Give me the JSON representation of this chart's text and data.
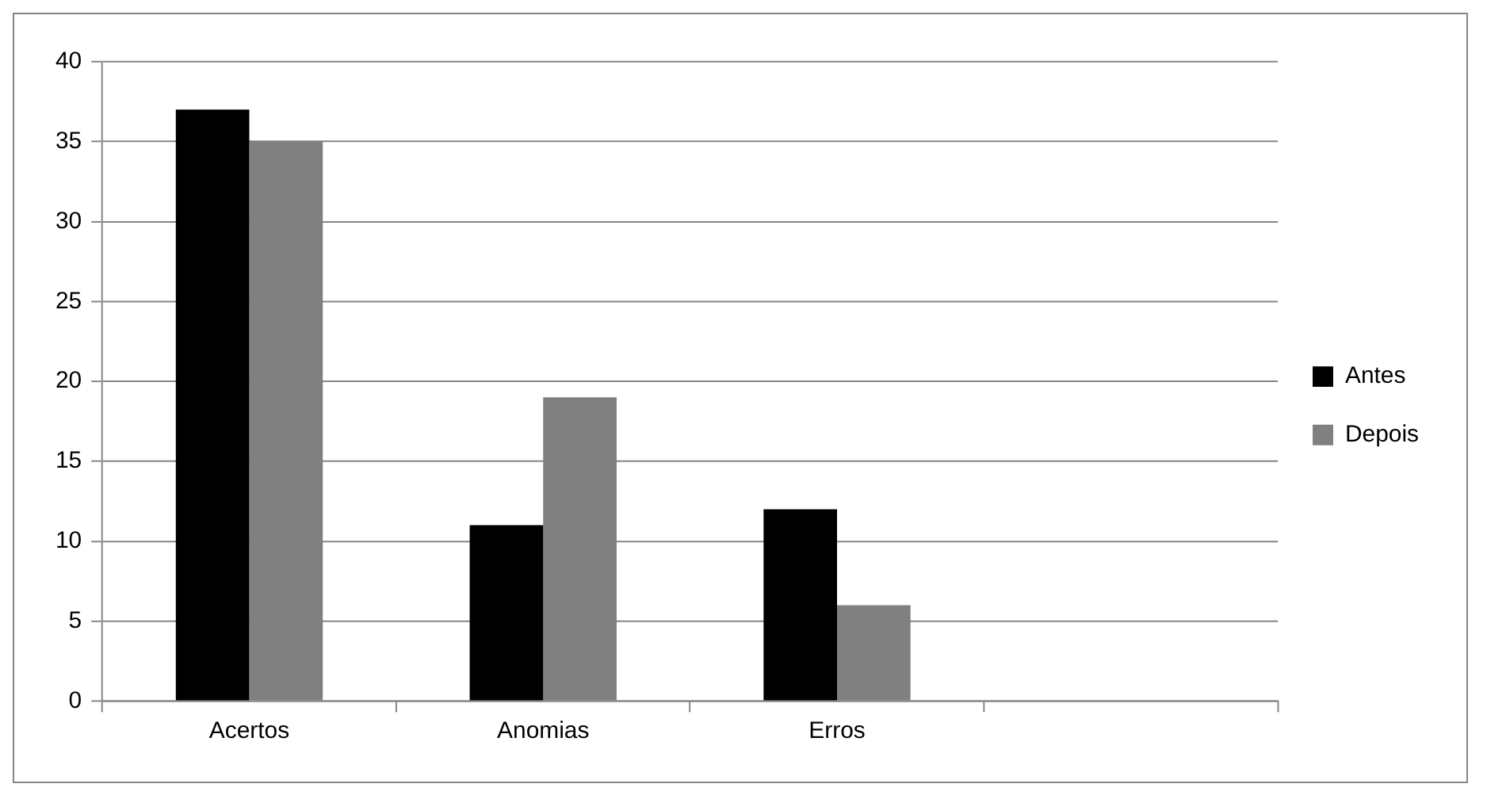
{
  "chart_data": {
    "type": "bar",
    "categories": [
      "Acertos",
      "Anomias",
      "Erros",
      null
    ],
    "series": [
      {
        "name": "Antes",
        "color": "#000000",
        "values": [
          37,
          11,
          12,
          null
        ]
      },
      {
        "name": "Depois",
        "color": "#808080",
        "values": [
          35,
          19,
          6,
          null
        ]
      }
    ],
    "ylim": [
      0,
      40
    ],
    "yticks": [
      0,
      5,
      10,
      15,
      20,
      25,
      30,
      35,
      40
    ],
    "grid": "y",
    "legend": "right"
  }
}
